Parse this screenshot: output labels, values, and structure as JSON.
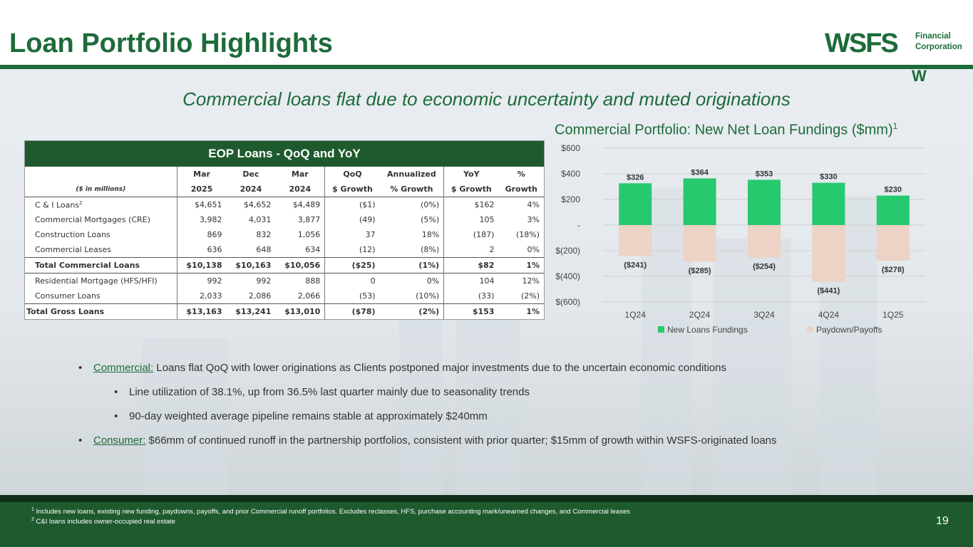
{
  "header": {
    "title": "Loan Portfolio Highlights",
    "logo": {
      "main": "WSFS",
      "sub_line1": "Financial",
      "sub_line2": "Corporation",
      "mark": "W"
    }
  },
  "subtitle": "Commercial loans flat due to economic uncertainty and muted originations",
  "chart_title": {
    "text": "Commercial Portfolio: New Net Loan Fundings ($mm)",
    "footnote": "1"
  },
  "table": {
    "title": "EOP Loans - QoQ and YoY",
    "unit_label": "($ in millions)",
    "col_headers_top": [
      "Mar",
      "Dec",
      "Mar",
      "QoQ",
      "Annualized",
      "YoY",
      "%"
    ],
    "col_headers_bottom": [
      "2025",
      "2024",
      "2024",
      "$ Growth",
      "% Growth",
      "$ Growth",
      "Growth"
    ],
    "rows": [
      {
        "label": "C & I Loans",
        "sup": "2",
        "values": [
          "$4,651",
          "$4,652",
          "$4,489",
          "($1)",
          "(0%)",
          "$162",
          "4%"
        ]
      },
      {
        "label": "Commercial Mortgages (CRE)",
        "sup": "",
        "values": [
          "3,982",
          "4,031",
          "3,877",
          "(49)",
          "(5%)",
          "105",
          "3%"
        ]
      },
      {
        "label": "Construction Loans",
        "sup": "",
        "values": [
          "869",
          "832",
          "1,056",
          "37",
          "18%",
          "(187)",
          "(18%)"
        ]
      },
      {
        "label": "Commercial Leases",
        "sup": "",
        "values": [
          "636",
          "648",
          "634",
          "(12)",
          "(8%)",
          "2",
          "0%"
        ]
      },
      {
        "label": "Total Commercial Loans",
        "sup": "",
        "values": [
          "$10,138",
          "$10,163",
          "$10,056",
          "($25)",
          "(1%)",
          "$82",
          "1%"
        ]
      },
      {
        "label": "Residential Mortgage (HFS/HFI)",
        "sup": "",
        "values": [
          "992",
          "992",
          "888",
          "0",
          "0%",
          "104",
          "12%"
        ]
      },
      {
        "label": "Consumer Loans",
        "sup": "",
        "values": [
          "2,033",
          "2,086",
          "2,066",
          "(53)",
          "(10%)",
          "(33)",
          "(2%)"
        ]
      },
      {
        "label": "Total Gross Loans",
        "sup": "",
        "values": [
          "$13,163",
          "$13,241",
          "$13,010",
          "($78)",
          "(2%)",
          "$153",
          "1%"
        ]
      }
    ]
  },
  "chart_data": {
    "type": "bar",
    "title": "Commercial Portfolio: New Net Loan Fundings ($mm)",
    "categories": [
      "1Q24",
      "2Q24",
      "3Q24",
      "4Q24",
      "1Q25"
    ],
    "series": [
      {
        "name": "New Loans Fundings",
        "color": "#27c96e",
        "values": [
          326,
          364,
          353,
          330,
          230
        ],
        "labels": [
          "$326",
          "$364",
          "$353",
          "$330",
          "$230"
        ]
      },
      {
        "name": "Paydown/Payoffs",
        "color": "#ecd3c5",
        "values": [
          -241,
          -285,
          -254,
          -441,
          -278
        ],
        "labels": [
          "($241)",
          "($285)",
          "($254)",
          "($441)",
          "($278)"
        ]
      }
    ],
    "ylim": [
      -600,
      600
    ],
    "yticks": [
      600,
      400,
      200,
      0,
      -200,
      -400,
      -600
    ],
    "ytick_labels": [
      "$600",
      "$400",
      "$200",
      "-",
      "$(200)",
      "$(400)",
      "$(600)"
    ],
    "grid": true,
    "legend": "bottom"
  },
  "bullets": [
    {
      "level": 1,
      "lead": "Commercial:",
      "text": " Loans flat QoQ with lower originations as Clients postponed major investments due to the uncertain economic conditions"
    },
    {
      "level": 2,
      "lead": "",
      "text": "Line utilization of 38.1%, up from 36.5% last quarter mainly due to seasonality trends"
    },
    {
      "level": 2,
      "lead": "",
      "text": "90-day weighted average pipeline remains stable at approximately $240mm"
    },
    {
      "level": 1,
      "lead": "Consumer:",
      "text": " $66mm of continued runoff in the partnership portfolios, consistent with prior quarter; $15mm of growth within WSFS-originated loans"
    }
  ],
  "footnotes": [
    {
      "num": "1",
      "text": " Includes new loans, existing new funding, paydowns, payoffs, and prior Commercial runoff portfolios. Excludes reclasses, HFS, purchase accounting mark/unearned changes, and Commercial leases"
    },
    {
      "num": "2",
      "text": " C&I loans includes owner-occupied real estate"
    }
  ],
  "page_number": "19",
  "colors": {
    "brand_green": "#1e6b3a",
    "table_header": "#1e5a2e"
  }
}
